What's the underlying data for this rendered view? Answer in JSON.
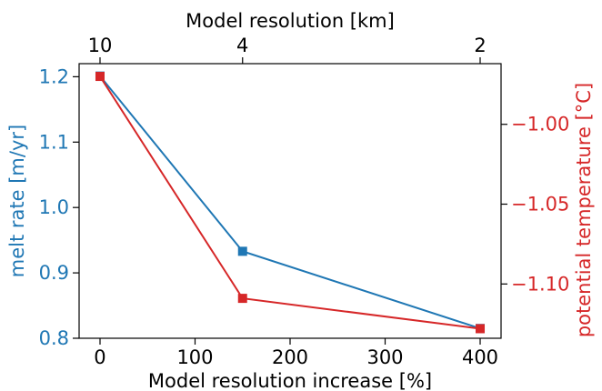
{
  "chart_data": {
    "type": "line",
    "x": [
      0,
      150,
      400
    ],
    "xlabel": "Model resolution increase [%]",
    "xticks": [
      0,
      100,
      200,
      300,
      400
    ],
    "xlim": [
      -22,
      422
    ],
    "top_axis": {
      "label": "Model resolution [km]",
      "ticks": [
        {
          "x": 0,
          "label": "10"
        },
        {
          "x": 150,
          "label": "4"
        },
        {
          "x": 400,
          "label": "2"
        }
      ]
    },
    "series": [
      {
        "values": [
          1.201,
          0.933,
          0.815
        ],
        "color": "#1f77b4",
        "axis": "left",
        "marker": "square"
      },
      {
        "values": [
          -0.97,
          -1.109,
          -1.128
        ],
        "color": "#d62728",
        "axis": "right",
        "marker": "square"
      }
    ],
    "left_axis": {
      "label": "melt rate [m/yr]",
      "ticks": [
        0.8,
        0.9,
        1.0,
        1.1,
        1.2
      ],
      "tick_labels": [
        "0.8",
        "0.9",
        "1.0",
        "1.1",
        "1.2"
      ],
      "lim": [
        0.8,
        1.22
      ],
      "color": "#1f77b4"
    },
    "right_axis": {
      "label": "potential temperature [°C]",
      "ticks": [
        -1.0,
        -1.05,
        -1.1
      ],
      "tick_labels": [
        "−1.00",
        "−1.05",
        "−1.10"
      ],
      "lim": [
        -1.134,
        -0.962
      ],
      "color": "#d62728"
    },
    "grid": false
  }
}
